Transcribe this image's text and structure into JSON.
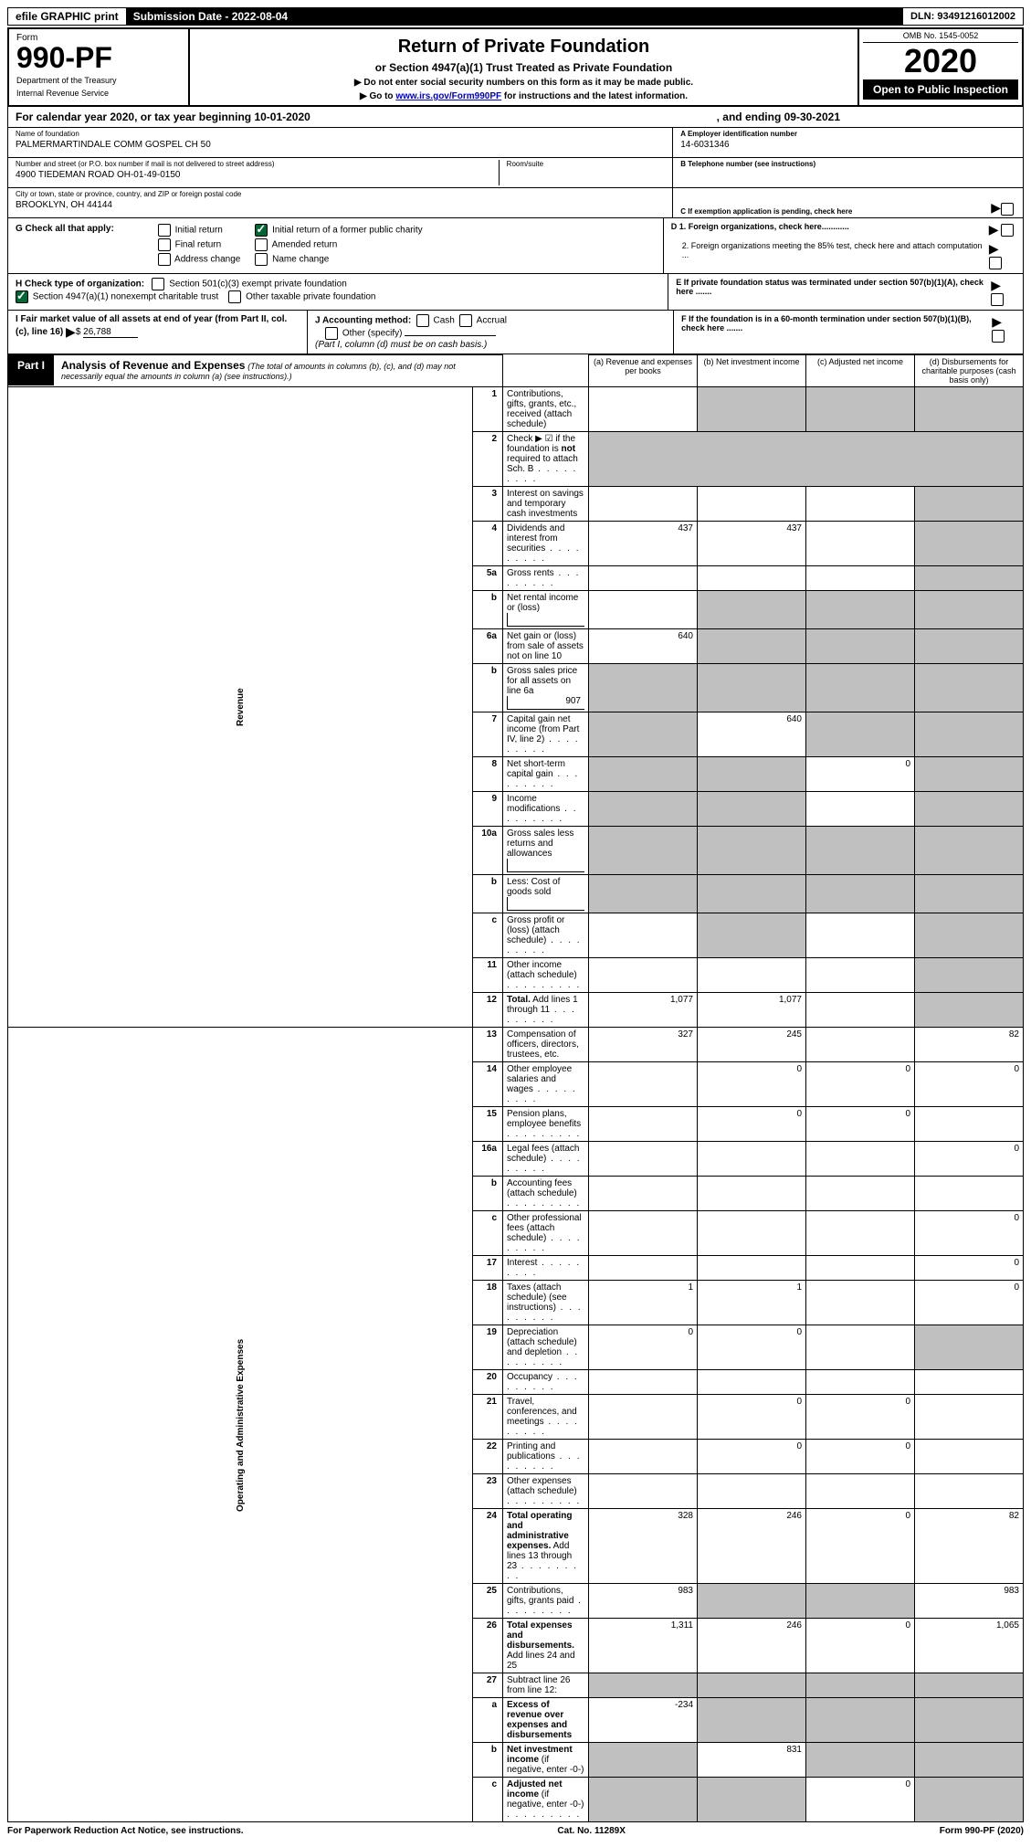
{
  "header": {
    "efile": "efile GRAPHIC print",
    "submission": "Submission Date - 2022-08-04",
    "dln": "DLN: 93491216012002"
  },
  "title_block": {
    "form": "Form",
    "form_num": "990-PF",
    "dept1": "Department of the Treasury",
    "dept2": "Internal Revenue Service",
    "main_title": "Return of Private Foundation",
    "subtitle": "or Section 4947(a)(1) Trust Treated as Private Foundation",
    "note1": "▶ Do not enter social security numbers on this form as it may be made public.",
    "note2_pre": "▶ Go to ",
    "note2_link": "www.irs.gov/Form990PF",
    "note2_post": " for instructions and the latest information.",
    "omb": "OMB No. 1545-0052",
    "year": "2020",
    "open": "Open to Public Inspection"
  },
  "cal_year": {
    "prefix": "For calendar year 2020, or tax year beginning 10-01-2020",
    "suffix": ", and ending 09-30-2021"
  },
  "info_left": {
    "name_label": "Name of foundation",
    "name_val": "PALMERMARTINDALE COMM GOSPEL CH 50",
    "addr_label": "Number and street (or P.O. box number if mail is not delivered to street address)",
    "addr_val": "4900 TIEDEMAN ROAD OH-01-49-0150",
    "room_label": "Room/suite",
    "city_label": "City or town, state or province, country, and ZIP or foreign postal code",
    "city_val": "BROOKLYN, OH  44144"
  },
  "info_right": {
    "a_label": "A Employer identification number",
    "a_val": "14-6031346",
    "b_label": "B Telephone number (see instructions)",
    "c_label": "C If exemption application is pending, check here",
    "d1": "D 1. Foreign organizations, check here............",
    "d2": "2. Foreign organizations meeting the 85% test, check here and attach computation ...",
    "e": "E  If private foundation status was terminated under section 507(b)(1)(A), check here .......",
    "f": "F  If the foundation is in a 60-month termination under section 507(b)(1)(B), check here ......."
  },
  "checks": {
    "g_label": "G Check all that apply:",
    "g_opts": [
      "Initial return",
      "Initial return of a former public charity",
      "Final return",
      "Amended return",
      "Address change",
      "Name change"
    ],
    "h_label": "H Check type of organization:",
    "h1": "Section 501(c)(3) exempt private foundation",
    "h2": "Section 4947(a)(1) nonexempt charitable trust",
    "h3": "Other taxable private foundation",
    "i_label": "I Fair market value of all assets at end of year (from Part II, col. (c), line 16)",
    "i_val": "26,788",
    "j_label": "J Accounting method:",
    "j_opts": [
      "Cash",
      "Accrual"
    ],
    "j_other": "Other (specify)",
    "j_note": "(Part I, column (d) must be on cash basis.)"
  },
  "part1": {
    "tag": "Part I",
    "title": "Analysis of Revenue and Expenses",
    "note": "(The total of amounts in columns (b), (c), and (d) may not necessarily equal the amounts in column (a) (see instructions).)",
    "cols": {
      "a": "(a) Revenue and expenses per books",
      "b": "(b) Net investment income",
      "c": "(c) Adjusted net income",
      "d": "(d) Disbursements for charitable purposes (cash basis only)"
    }
  },
  "side_labels": {
    "revenue": "Revenue",
    "expenses": "Operating and Administrative Expenses"
  },
  "rows": [
    {
      "n": "1",
      "desc": "Contributions, gifts, grants, etc., received (attach schedule)",
      "a": "",
      "b": "shade",
      "c": "shade",
      "d": "shade"
    },
    {
      "n": "2",
      "desc": "Check ▶ ☑ if the foundation is <b>not</b> required to attach Sch. B",
      "dots": true,
      "merged": true
    },
    {
      "n": "3",
      "desc": "Interest on savings and temporary cash investments",
      "a": "",
      "b": "",
      "c": "",
      "d": "shade"
    },
    {
      "n": "4",
      "desc": "Dividends and interest from securities",
      "dots": true,
      "a": "437",
      "b": "437",
      "c": "",
      "d": "shade"
    },
    {
      "n": "5a",
      "desc": "Gross rents",
      "dots": true,
      "a": "",
      "b": "",
      "c": "",
      "d": "shade"
    },
    {
      "n": "b",
      "desc": "Net rental income or (loss)",
      "boxed": "",
      "merged_shade_bcd": true
    },
    {
      "n": "6a",
      "desc": "Net gain or (loss) from sale of assets not on line 10",
      "a": "640",
      "b": "shade",
      "c": "shade",
      "d": "shade"
    },
    {
      "n": "b",
      "desc": "Gross sales price for all assets on line 6a",
      "boxed": "907",
      "merged_shade_all": true
    },
    {
      "n": "7",
      "desc": "Capital gain net income (from Part IV, line 2)",
      "dots": true,
      "a": "shade",
      "b": "640",
      "c": "shade",
      "d": "shade"
    },
    {
      "n": "8",
      "desc": "Net short-term capital gain",
      "dots": true,
      "a": "shade",
      "b": "shade",
      "c": "0",
      "d": "shade"
    },
    {
      "n": "9",
      "desc": "Income modifications",
      "dots": true,
      "a": "shade",
      "b": "shade",
      "c": "",
      "d": "shade"
    },
    {
      "n": "10a",
      "desc": "Gross sales less returns and allowances",
      "boxed": "",
      "merged_shade_all": true
    },
    {
      "n": "b",
      "desc": "Less: Cost of goods sold",
      "dots": true,
      "boxed": "",
      "merged_shade_all": true
    },
    {
      "n": "c",
      "desc": "Gross profit or (loss) (attach schedule)",
      "dots": true,
      "a": "",
      "b": "shade",
      "c": "",
      "d": "shade"
    },
    {
      "n": "11",
      "desc": "Other income (attach schedule)",
      "dots": true,
      "a": "",
      "b": "",
      "c": "",
      "d": "shade"
    },
    {
      "n": "12",
      "desc": "<b>Total.</b> Add lines 1 through 11",
      "dots": true,
      "a": "1,077",
      "b": "1,077",
      "c": "",
      "d": "shade"
    },
    {
      "n": "13",
      "desc": "Compensation of officers, directors, trustees, etc.",
      "a": "327",
      "b": "245",
      "c": "",
      "d": "82"
    },
    {
      "n": "14",
      "desc": "Other employee salaries and wages",
      "dots": true,
      "a": "",
      "b": "0",
      "c": "0",
      "d": "0"
    },
    {
      "n": "15",
      "desc": "Pension plans, employee benefits",
      "dots": true,
      "a": "",
      "b": "0",
      "c": "0",
      "d": ""
    },
    {
      "n": "16a",
      "desc": "Legal fees (attach schedule)",
      "dots": true,
      "a": "",
      "b": "",
      "c": "",
      "d": "0"
    },
    {
      "n": "b",
      "desc": "Accounting fees (attach schedule)",
      "dots": true,
      "a": "",
      "b": "",
      "c": "",
      "d": ""
    },
    {
      "n": "c",
      "desc": "Other professional fees (attach schedule)",
      "dots": true,
      "a": "",
      "b": "",
      "c": "",
      "d": "0"
    },
    {
      "n": "17",
      "desc": "Interest",
      "dots": true,
      "a": "",
      "b": "",
      "c": "",
      "d": "0"
    },
    {
      "n": "18",
      "desc": "Taxes (attach schedule) (see instructions)",
      "dots": true,
      "a": "1",
      "b": "1",
      "c": "",
      "d": "0"
    },
    {
      "n": "19",
      "desc": "Depreciation (attach schedule) and depletion",
      "dots": true,
      "a": "0",
      "b": "0",
      "c": "",
      "d": "shade"
    },
    {
      "n": "20",
      "desc": "Occupancy",
      "dots": true,
      "a": "",
      "b": "",
      "c": "",
      "d": ""
    },
    {
      "n": "21",
      "desc": "Travel, conferences, and meetings",
      "dots": true,
      "a": "",
      "b": "0",
      "c": "0",
      "d": ""
    },
    {
      "n": "22",
      "desc": "Printing and publications",
      "dots": true,
      "a": "",
      "b": "0",
      "c": "0",
      "d": ""
    },
    {
      "n": "23",
      "desc": "Other expenses (attach schedule)",
      "dots": true,
      "a": "",
      "b": "",
      "c": "",
      "d": ""
    },
    {
      "n": "24",
      "desc": "<b>Total operating and administrative expenses.</b> Add lines 13 through 23",
      "dots": true,
      "a": "328",
      "b": "246",
      "c": "0",
      "d": "82"
    },
    {
      "n": "25",
      "desc": "Contributions, gifts, grants paid",
      "dots": true,
      "a": "983",
      "b": "shade",
      "c": "shade",
      "d": "983"
    },
    {
      "n": "26",
      "desc": "<b>Total expenses and disbursements.</b> Add lines 24 and 25",
      "a": "1,311",
      "b": "246",
      "c": "0",
      "d": "1,065"
    },
    {
      "n": "27",
      "desc": "Subtract line 26 from line 12:",
      "a": "shade",
      "b": "shade",
      "c": "shade",
      "d": "shade"
    },
    {
      "n": "a",
      "desc": "<b>Excess of revenue over expenses and disbursements</b>",
      "a": "-234",
      "b": "shade",
      "c": "shade",
      "d": "shade"
    },
    {
      "n": "b",
      "desc": "<b>Net investment income</b> (if negative, enter -0-)",
      "a": "shade",
      "b": "831",
      "c": "shade",
      "d": "shade"
    },
    {
      "n": "c",
      "desc": "<b>Adjusted net income</b> (if negative, enter -0-)",
      "dots": true,
      "a": "shade",
      "b": "shade",
      "c": "0",
      "d": "shade"
    }
  ],
  "footer": {
    "left": "For Paperwork Reduction Act Notice, see instructions.",
    "center": "Cat. No. 11289X",
    "right": "Form 990-PF (2020)"
  },
  "colors": {
    "shade": "#c0c0c0",
    "link": "#0000cc",
    "check_green": "#006633"
  }
}
